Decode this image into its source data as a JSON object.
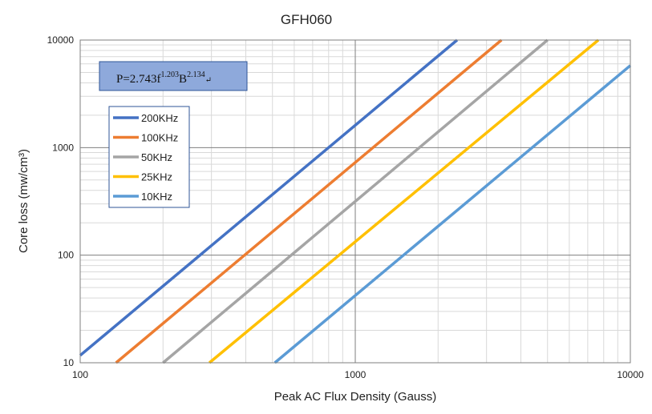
{
  "chart_data": {
    "type": "line",
    "title": "GFH060",
    "xlabel": "Peak AC Flux Density (Gauss)",
    "ylabel": "Core loss (mw/cm³)",
    "x_scale": "log",
    "y_scale": "log",
    "xlim": [
      100,
      10000
    ],
    "ylim": [
      10,
      10000
    ],
    "x_ticks": [
      "100",
      "1000",
      "10000"
    ],
    "y_ticks": [
      "10",
      "100",
      "1000",
      "10000"
    ],
    "grid": true,
    "legend_position": "upper-left",
    "formula": {
      "base": "P=2.743f",
      "f_exp": "1.203",
      "b": "B",
      "b_exp": "2.134",
      "trail": "↵"
    },
    "series": [
      {
        "name": "200KHz",
        "color": "#4472C4",
        "points": [
          [
            100,
            11.7
          ],
          [
            2345,
            10000
          ]
        ]
      },
      {
        "name": "100KHz",
        "color": "#ED7D31",
        "points": [
          [
            135,
            10
          ],
          [
            3400,
            10000
          ]
        ]
      },
      {
        "name": "50KHz",
        "color": "#A5A5A5",
        "points": [
          [
            200,
            10
          ],
          [
            5000,
            10000
          ]
        ]
      },
      {
        "name": "25KHz",
        "color": "#FFC000",
        "points": [
          [
            295,
            10
          ],
          [
            7650,
            10000
          ]
        ]
      },
      {
        "name": "10KHz",
        "color": "#5B9BD5",
        "points": [
          [
            510,
            10
          ],
          [
            10000,
            5800
          ]
        ]
      }
    ]
  }
}
